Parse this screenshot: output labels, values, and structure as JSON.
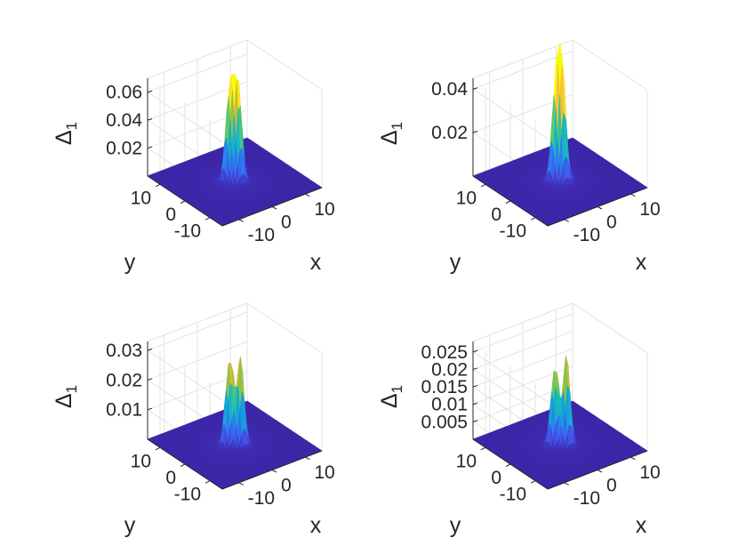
{
  "chart_data": [
    {
      "type": "surface",
      "panel": "top-left",
      "title": "",
      "xlabel": "x",
      "ylabel": "y",
      "zlabel": "Δ",
      "zlabel_sub": "1",
      "x_ticks": [
        "-10",
        "0",
        "10"
      ],
      "y_ticks": [
        "-10",
        "0",
        "10"
      ],
      "z_ticks": [
        "0.02",
        "0.04",
        "0.06"
      ],
      "z_tick_values": [
        0.02,
        0.04,
        0.06
      ],
      "xlim": [
        -15,
        15
      ],
      "ylim": [
        -15,
        15
      ],
      "zlim": [
        0,
        0.07
      ],
      "peak": 0.066,
      "colormap": "parula",
      "grid": true,
      "peaks": [
        {
          "x": 0.4,
          "y": -0.8,
          "z": 0.066,
          "w": 0.9
        },
        {
          "x": -1.0,
          "y": 0.8,
          "z": 0.06,
          "w": 0.9
        },
        {
          "x": 0.9,
          "y": 1.2,
          "z": 0.052,
          "w": 0.9
        }
      ]
    },
    {
      "type": "surface",
      "panel": "top-right",
      "title": "",
      "xlabel": "x",
      "ylabel": "y",
      "zlabel": "Δ",
      "zlabel_sub": "1",
      "x_ticks": [
        "-10",
        "0",
        "10"
      ],
      "y_ticks": [
        "-10",
        "0",
        "10"
      ],
      "z_ticks": [
        "0.02",
        "0.04"
      ],
      "z_tick_values": [
        0.02,
        0.04
      ],
      "xlim": [
        -15,
        15
      ],
      "ylim": [
        -15,
        15
      ],
      "zlim": [
        0,
        0.045
      ],
      "peak": 0.043,
      "colormap": "parula",
      "grid": true,
      "peaks": [
        {
          "x": 0.2,
          "y": -0.6,
          "z": 0.043,
          "w": 0.9
        },
        {
          "x": -0.9,
          "y": 0.7,
          "z": 0.039,
          "w": 0.9
        },
        {
          "x": 0.9,
          "y": 1.0,
          "z": 0.035,
          "w": 0.9
        }
      ]
    },
    {
      "type": "surface",
      "panel": "bottom-left",
      "title": "",
      "xlabel": "x",
      "ylabel": "y",
      "zlabel": "Δ",
      "zlabel_sub": "1",
      "x_ticks": [
        "-10",
        "0",
        "10"
      ],
      "y_ticks": [
        "-10",
        "0",
        "10"
      ],
      "z_ticks": [
        "0.01",
        "0.02",
        "0.03"
      ],
      "z_tick_values": [
        0.01,
        0.02,
        0.03
      ],
      "xlim": [
        -15,
        15
      ],
      "ylim": [
        -15,
        15
      ],
      "zlim": [
        0,
        0.033
      ],
      "peak": 0.03,
      "colormap": "parula",
      "grid": true,
      "peaks": [
        {
          "x": 0.8,
          "y": -1.2,
          "z": 0.03,
          "w": 0.85
        },
        {
          "x": -1.4,
          "y": 0.6,
          "z": 0.024,
          "w": 0.85
        },
        {
          "x": 0.2,
          "y": 1.3,
          "z": 0.021,
          "w": 0.85
        }
      ]
    },
    {
      "type": "surface",
      "panel": "bottom-right",
      "title": "",
      "xlabel": "x",
      "ylabel": "y",
      "zlabel": "Δ",
      "zlabel_sub": "1",
      "x_ticks": [
        "-10",
        "0",
        "10"
      ],
      "y_ticks": [
        "-10",
        "0",
        "10"
      ],
      "z_ticks": [
        "0.005",
        "0.01",
        "0.015",
        "0.02",
        "0.025"
      ],
      "z_tick_values": [
        0.005,
        0.01,
        0.015,
        0.02,
        0.025
      ],
      "xlim": [
        -15,
        15
      ],
      "ylim": [
        -15,
        15
      ],
      "zlim": [
        0,
        0.028
      ],
      "peak": 0.026,
      "colormap": "parula",
      "grid": true,
      "peaks": [
        {
          "x": 0.9,
          "y": -1.3,
          "z": 0.026,
          "w": 0.85
        },
        {
          "x": -1.5,
          "y": 0.5,
          "z": 0.018,
          "w": 0.85
        },
        {
          "x": 0.0,
          "y": 1.4,
          "z": 0.017,
          "w": 0.85
        }
      ]
    }
  ],
  "colors": {
    "parula_stops": [
      "#3e26a8",
      "#4451e6",
      "#2c7bf5",
      "#12a2d9",
      "#19bfb7",
      "#5dc963",
      "#b7bd33",
      "#f5bf38",
      "#f9fb0e"
    ],
    "axis": "#262626",
    "grid": "#e3e3e3"
  }
}
